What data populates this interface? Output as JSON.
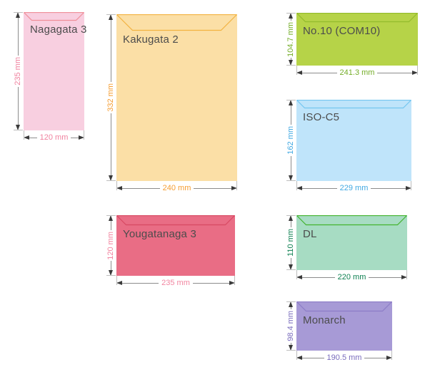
{
  "page": {
    "background": "#ffffff",
    "dimension_line_color": "#8c8c8c",
    "arrow_color": "#3a3a3a",
    "name_text_color": "#4c4c4c"
  },
  "envelopes": [
    {
      "name": "Nagagata 3",
      "width_mm": 120,
      "height_mm": 235,
      "width_label": "120 mm",
      "height_label": "235 mm",
      "fill": "#f8cfe0",
      "flap_color": "#ef8e98",
      "label_color": "#f0829f"
    },
    {
      "name": "Kakugata 2",
      "width_mm": 240,
      "height_mm": 332,
      "width_label": "240 mm",
      "height_label": "332 mm",
      "fill": "#fbdfa6",
      "flap_color": "#f2b240",
      "label_color": "#f59d32"
    },
    {
      "name": "Yougatanaga 3",
      "width_mm": 235,
      "height_mm": 120,
      "width_label": "235 mm",
      "height_label": "120 mm",
      "fill": "#e96d85",
      "flap_color": "#d84a63",
      "label_color": "#f285a0"
    },
    {
      "name": "No.10 (COM10)",
      "width_mm": 241.3,
      "height_mm": 104.7,
      "width_label": "241.3 mm",
      "height_label": "104.7 mm",
      "fill": "#b6d348",
      "flap_color": "#93bb2c",
      "label_color": "#74ad28"
    },
    {
      "name": "ISO-C5",
      "width_mm": 229,
      "height_mm": 162,
      "width_label": "229 mm",
      "height_label": "162 mm",
      "fill": "#bfe4fa",
      "flap_color": "#74c6f0",
      "label_color": "#42a9e2"
    },
    {
      "name": "DL",
      "width_mm": 220,
      "height_mm": 110,
      "width_label": "220 mm",
      "height_label": "110 mm",
      "fill": "#a7dcc3",
      "flap_color": "#43b32e",
      "label_color": "#0d8051"
    },
    {
      "name": "Monarch",
      "width_mm": 190.5,
      "height_mm": 98.4,
      "width_label": "190.5 mm",
      "height_label": "98.4 mm",
      "fill": "#a79ad6",
      "flap_color": "#8d7dc7",
      "label_color": "#7a6dbd"
    }
  ]
}
